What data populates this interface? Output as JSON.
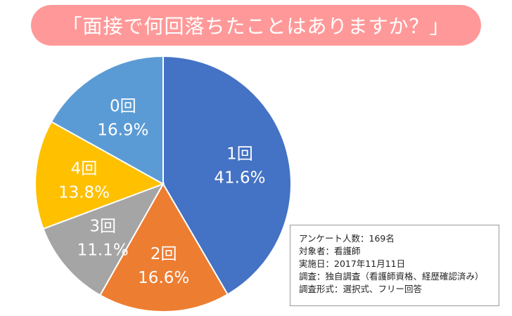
{
  "title": "「面接で何回落ちたことはありますか？」",
  "chart_data": {
    "type": "pie",
    "title": "「面接で何回落ちたことはありますか？」",
    "start_angle_deg": 0,
    "direction": "clockwise",
    "slices": [
      {
        "label": "1回",
        "value": 41.6,
        "value_text": "41.6%",
        "color": "#4472c4"
      },
      {
        "label": "2回",
        "value": 16.6,
        "value_text": "16.6%",
        "color": "#ed7d31"
      },
      {
        "label": "3回",
        "value": 11.1,
        "value_text": "11.1%",
        "color": "#a5a5a5"
      },
      {
        "label": "4回",
        "value": 13.8,
        "value_text": "13.8%",
        "color": "#ffc000"
      },
      {
        "label": "0回",
        "value": 16.9,
        "value_text": "16.9%",
        "color": "#5b9bd5"
      }
    ]
  },
  "info": {
    "respondents": "アンケート人数：169名",
    "target": "対象者：看護師",
    "date": "実施日：2017年11月11日",
    "survey": "調査：独自調査（看護師資格、経歴確認済み）",
    "format": "調査形式：選択式、フリー回答"
  }
}
